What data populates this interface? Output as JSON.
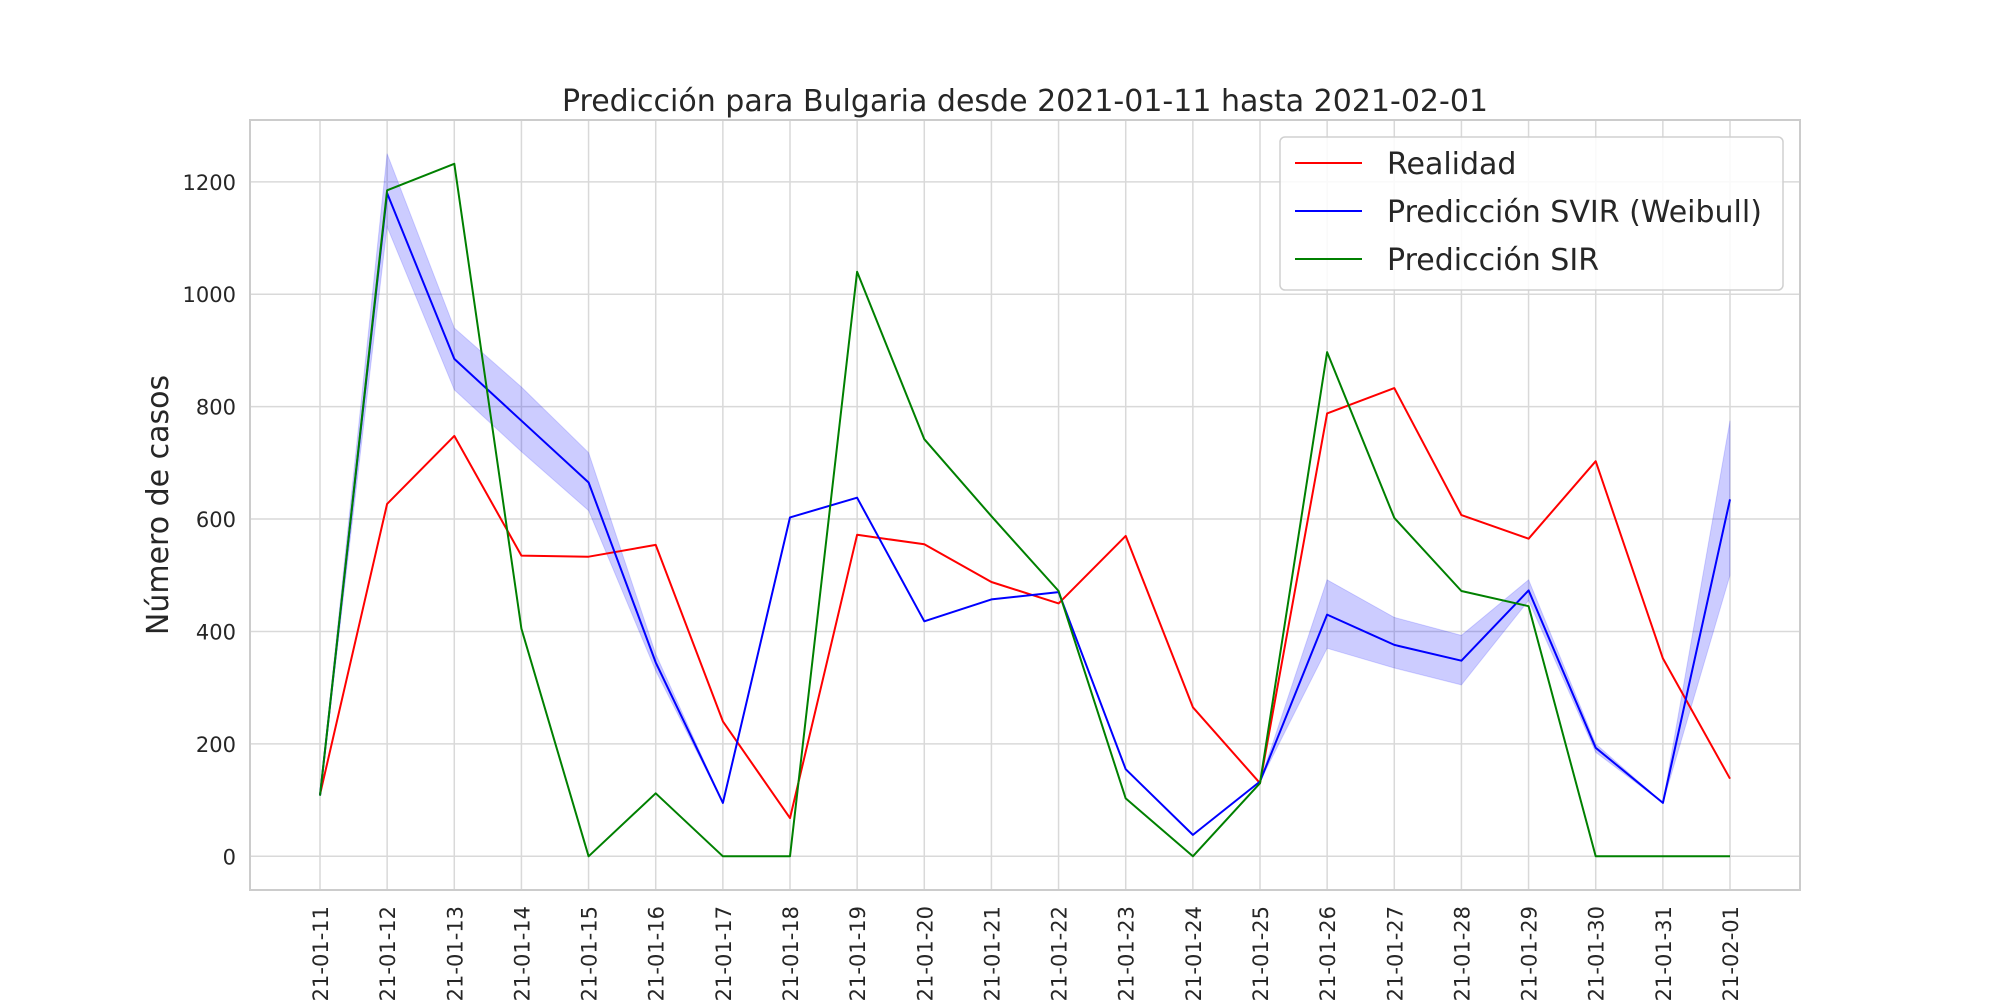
{
  "chart_data": {
    "type": "line",
    "title": "Predicción para Bulgaria desde 2021-01-11 hasta 2021-02-01",
    "xlabel": "",
    "ylabel": "Número de casos",
    "x": [
      "2021-01-11",
      "2021-01-12",
      "2021-01-13",
      "2021-01-14",
      "2021-01-15",
      "2021-01-16",
      "2021-01-17",
      "2021-01-18",
      "2021-01-19",
      "2021-01-20",
      "2021-01-21",
      "2021-01-22",
      "2021-01-23",
      "2021-01-24",
      "2021-01-25",
      "2021-01-26",
      "2021-01-27",
      "2021-01-28",
      "2021-01-29",
      "2021-01-30",
      "2021-01-31",
      "2021-02-01"
    ],
    "ylim": [
      -60,
      1310
    ],
    "yticks": [
      0,
      200,
      400,
      600,
      800,
      1000,
      1200
    ],
    "grid": true,
    "legend_position": "top-right",
    "series": [
      {
        "name": "Realidad",
        "color": "#ff0000",
        "values": [
          110,
          627,
          748,
          535,
          533,
          554,
          240,
          68,
          572,
          555,
          488,
          450,
          570,
          265,
          130,
          788,
          833,
          607,
          565,
          703,
          352,
          138
        ]
      },
      {
        "name": "Predicción SVIR (Weibull)",
        "color": "#0000ff",
        "values": [
          108,
          1180,
          885,
          775,
          665,
          345,
          95,
          603,
          638,
          418,
          457,
          470,
          155,
          38,
          133,
          430,
          376,
          348,
          473,
          193,
          95,
          635
        ],
        "band_lower": [
          108,
          1120,
          830,
          720,
          615,
          330,
          95,
          603,
          638,
          418,
          457,
          470,
          155,
          38,
          133,
          370,
          335,
          305,
          455,
          185,
          95,
          500
        ],
        "band_upper": [
          108,
          1250,
          940,
          835,
          718,
          360,
          95,
          603,
          638,
          418,
          457,
          470,
          155,
          38,
          133,
          492,
          425,
          393,
          492,
          200,
          95,
          775
        ],
        "band_color": "#0000ff"
      },
      {
        "name": "Predicción SIR",
        "color": "#008000",
        "values": [
          108,
          1185,
          1232,
          405,
          0,
          112,
          0,
          0,
          1040,
          742,
          605,
          472,
          103,
          0,
          130,
          897,
          602,
          472,
          445,
          0,
          0,
          0
        ]
      }
    ]
  }
}
